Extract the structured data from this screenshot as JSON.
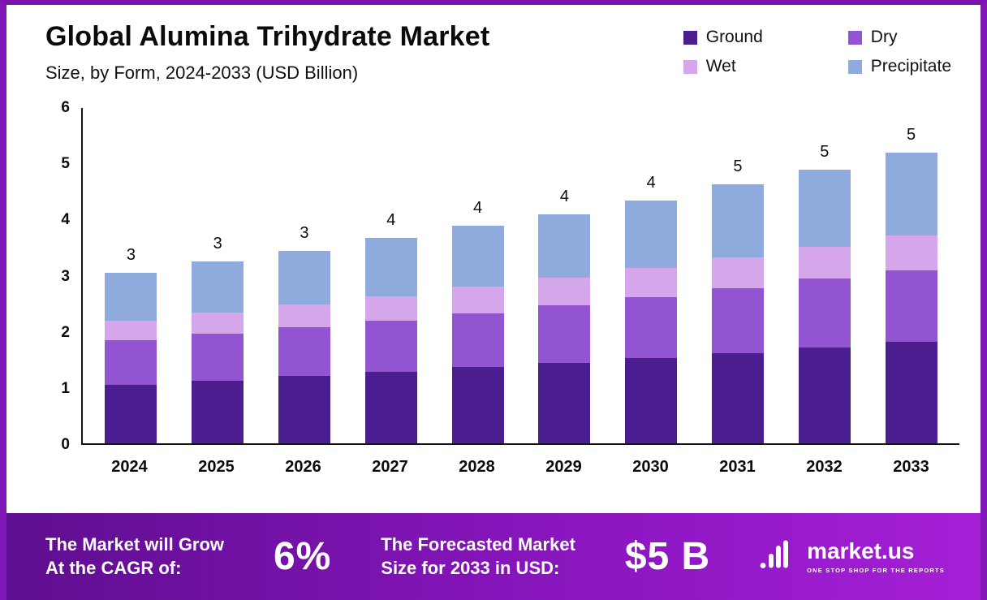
{
  "header": {
    "title": "Global Alumina Trihydrate Market",
    "subtitle": "Size, by Form, 2024-2033 (USD Billion)"
  },
  "chart_data": {
    "type": "bar",
    "stacked": true,
    "title": "Global Alumina Trihydrate Market",
    "subtitle": "Size, by Form, 2024-2033 (USD Billion)",
    "categories": [
      "2024",
      "2025",
      "2026",
      "2027",
      "2028",
      "2029",
      "2030",
      "2031",
      "2032",
      "2033"
    ],
    "series": [
      {
        "name": "Ground",
        "color": "#4a1e8e",
        "values": [
          1.05,
          1.12,
          1.2,
          1.28,
          1.36,
          1.44,
          1.53,
          1.62,
          1.72,
          1.82
        ]
      },
      {
        "name": "Dry",
        "color": "#9254d0",
        "values": [
          0.8,
          0.84,
          0.88,
          0.92,
          0.97,
          1.03,
          1.09,
          1.15,
          1.23,
          1.28
        ]
      },
      {
        "name": "Wet",
        "color": "#d5a6ea",
        "values": [
          0.35,
          0.38,
          0.4,
          0.43,
          0.47,
          0.5,
          0.52,
          0.55,
          0.57,
          0.62
        ]
      },
      {
        "name": "Precipitate",
        "color": "#8faadc",
        "values": [
          0.85,
          0.91,
          0.97,
          1.04,
          1.1,
          1.13,
          1.21,
          1.31,
          1.38,
          1.48
        ]
      }
    ],
    "bar_total_labels": [
      "3",
      "3",
      "3",
      "4",
      "4",
      "4",
      "4",
      "5",
      "5",
      "5"
    ],
    "ylim": [
      0,
      6
    ],
    "yticks": [
      0,
      1,
      2,
      3,
      4,
      5,
      6
    ],
    "legend_position": "top-right",
    "grid": false,
    "xlabel": "",
    "ylabel": ""
  },
  "footer": {
    "cagr_label_line1": "The Market will Grow",
    "cagr_label_line2": "At the CAGR of:",
    "cagr_value": "6%",
    "forecast_label_line1": "The Forecasted Market",
    "forecast_label_line2": "Size for 2033 in USD:",
    "forecast_value": "$5 B",
    "brand_name": "market.us",
    "brand_tagline": "ONE STOP SHOP FOR THE REPORTS"
  }
}
